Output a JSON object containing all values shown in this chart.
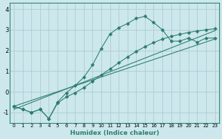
{
  "xlabel": "Humidex (Indice chaleur)",
  "bg_color": "#cce8ec",
  "grid_color": "#b0cfd4",
  "line_color": "#2d7d6e",
  "xlim": [
    -0.5,
    23.5
  ],
  "ylim": [
    -1.5,
    4.3
  ],
  "xticks": [
    0,
    1,
    2,
    3,
    4,
    5,
    6,
    7,
    8,
    9,
    10,
    11,
    12,
    13,
    14,
    15,
    16,
    17,
    18,
    19,
    20,
    21,
    22,
    23
  ],
  "yticks": [
    -1,
    0,
    1,
    2,
    3,
    4
  ],
  "series": [
    {
      "x": [
        0,
        1,
        2,
        3,
        4,
        5,
        6,
        7,
        8,
        9,
        10,
        11,
        12,
        13,
        14,
        15,
        16,
        17,
        18,
        19,
        20,
        21,
        22,
        23
      ],
      "y": [
        -0.7,
        -0.85,
        -1.0,
        -0.85,
        -1.3,
        -0.5,
        -0.05,
        0.3,
        0.7,
        1.3,
        2.1,
        2.8,
        3.1,
        3.3,
        3.55,
        3.65,
        3.35,
        3.0,
        2.45,
        2.45,
        2.6,
        2.4,
        2.6,
        2.6
      ],
      "marker": "D",
      "marker_size": 2.5
    },
    {
      "x": [
        0,
        1,
        2,
        3,
        4,
        5,
        6,
        7,
        8,
        9,
        10,
        11,
        12,
        13,
        14,
        15,
        16,
        17,
        18,
        19,
        20,
        21,
        22,
        23
      ],
      "y": [
        -0.7,
        -0.85,
        -1.0,
        -0.85,
        -1.3,
        -0.55,
        -0.25,
        -0.05,
        0.2,
        0.5,
        0.82,
        1.1,
        1.4,
        1.68,
        1.95,
        2.18,
        2.38,
        2.55,
        2.68,
        2.78,
        2.87,
        2.94,
        3.0,
        3.05
      ],
      "marker": "D",
      "marker_size": 2.5
    },
    {
      "x": [
        0,
        23
      ],
      "y": [
        -0.7,
        2.55
      ],
      "marker": null,
      "marker_size": 0
    },
    {
      "x": [
        0,
        23
      ],
      "y": [
        -0.85,
        2.95
      ],
      "marker": null,
      "marker_size": 0
    }
  ]
}
